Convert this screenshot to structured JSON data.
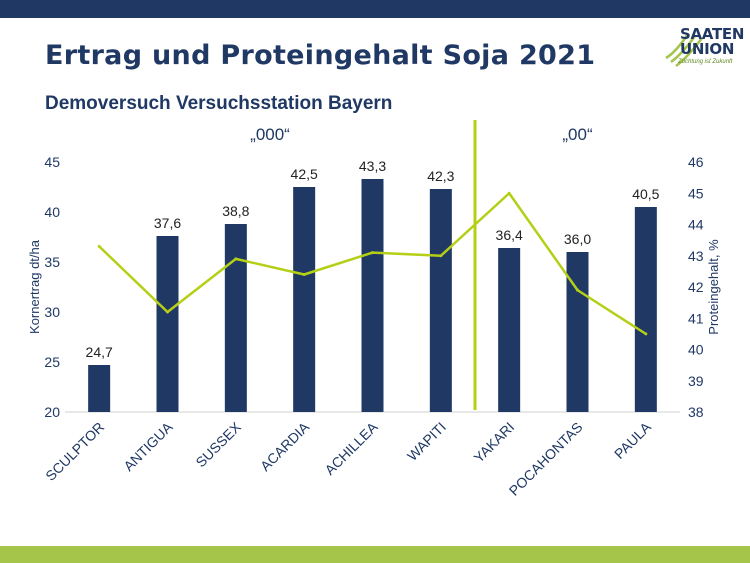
{
  "header": {
    "title": "Ertrag und Proteingehalt Soja 2021",
    "subtitle": "Demoversuch Versuchsstation Bayern"
  },
  "logo": {
    "line1": "SAATEN",
    "line2": "UNION",
    "slogan": "Züchtung ist Zukunft",
    "icon": "green-leaf-stripes-icon"
  },
  "colors": {
    "bar": "#1f3864",
    "line": "#b5cf16",
    "divider": "#b5cf16",
    "text": "#1f3864",
    "top_bar": "#1f3864",
    "bottom_bar": "#a4c54a"
  },
  "chart_data": {
    "type": "bar",
    "categories": [
      "SCULPTOR",
      "ANTIGUA",
      "SUSSEX",
      "ACARDIA",
      "ACHILLEA",
      "WAPITI",
      "YAKARI",
      "POCAHONTAS",
      "PAULA"
    ],
    "series": [
      {
        "name": "Kornertrag dt/ha",
        "type": "bar",
        "axis": "left",
        "values": [
          24.7,
          37.6,
          38.8,
          42.5,
          43.3,
          42.3,
          36.4,
          36.0,
          40.5
        ],
        "labels": [
          "24,7",
          "37,6",
          "38,8",
          "42,5",
          "43,3",
          "42,3",
          "36,4",
          "36,0",
          "40,5"
        ]
      },
      {
        "name": "Proteingehalt, %",
        "type": "line",
        "axis": "right",
        "values": [
          43.3,
          41.2,
          42.9,
          42.4,
          43.1,
          43.0,
          45.0,
          41.9,
          40.5
        ]
      }
    ],
    "ylabel": "Kornertrag dt/ha",
    "y2label": "Proteingehalt, %",
    "ylim": [
      20,
      45
    ],
    "y2lim": [
      38,
      46
    ],
    "yticks": [
      20,
      25,
      30,
      35,
      40,
      45
    ],
    "y2ticks": [
      38,
      39,
      40,
      41,
      42,
      43,
      44,
      45,
      46
    ],
    "groups": [
      {
        "label": "„000“",
        "from": 0,
        "to": 5
      },
      {
        "label": "„00“",
        "from": 6,
        "to": 8
      }
    ],
    "divider_after_index": 5,
    "grid": false
  }
}
